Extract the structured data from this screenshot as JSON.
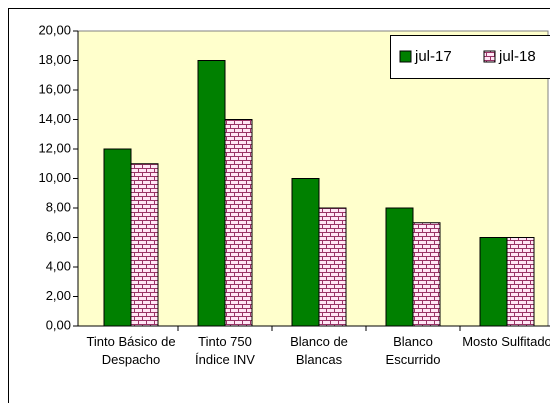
{
  "chart_data": {
    "type": "bar",
    "categories": [
      "Tinto Básico de Despacho",
      "Tinto 750 Índice INV",
      "Blanco de Blancas",
      "Blanco Escurrido",
      "Mosto Sulfitado"
    ],
    "series": [
      {
        "name": "jul-17",
        "color": "#008000",
        "values": [
          12,
          18,
          10,
          8,
          6
        ]
      },
      {
        "name": "jul-18",
        "color": "#993366",
        "values": [
          11,
          14,
          8,
          7,
          6
        ]
      }
    ],
    "ylim": [
      0,
      20
    ],
    "yticks": [
      {
        "value": 0,
        "label": "0,00"
      },
      {
        "value": 2,
        "label": "2,00"
      },
      {
        "value": 4,
        "label": "4,00"
      },
      {
        "value": 6,
        "label": "6,00"
      },
      {
        "value": 8,
        "label": "8,00"
      },
      {
        "value": 10,
        "label": "10,00"
      },
      {
        "value": 12,
        "label": "12,00"
      },
      {
        "value": 14,
        "label": "14,00"
      },
      {
        "value": 16,
        "label": "16,00"
      },
      {
        "value": 18,
        "label": "18,00"
      },
      {
        "value": 20,
        "label": "20,00"
      }
    ],
    "legend": "top-right"
  }
}
